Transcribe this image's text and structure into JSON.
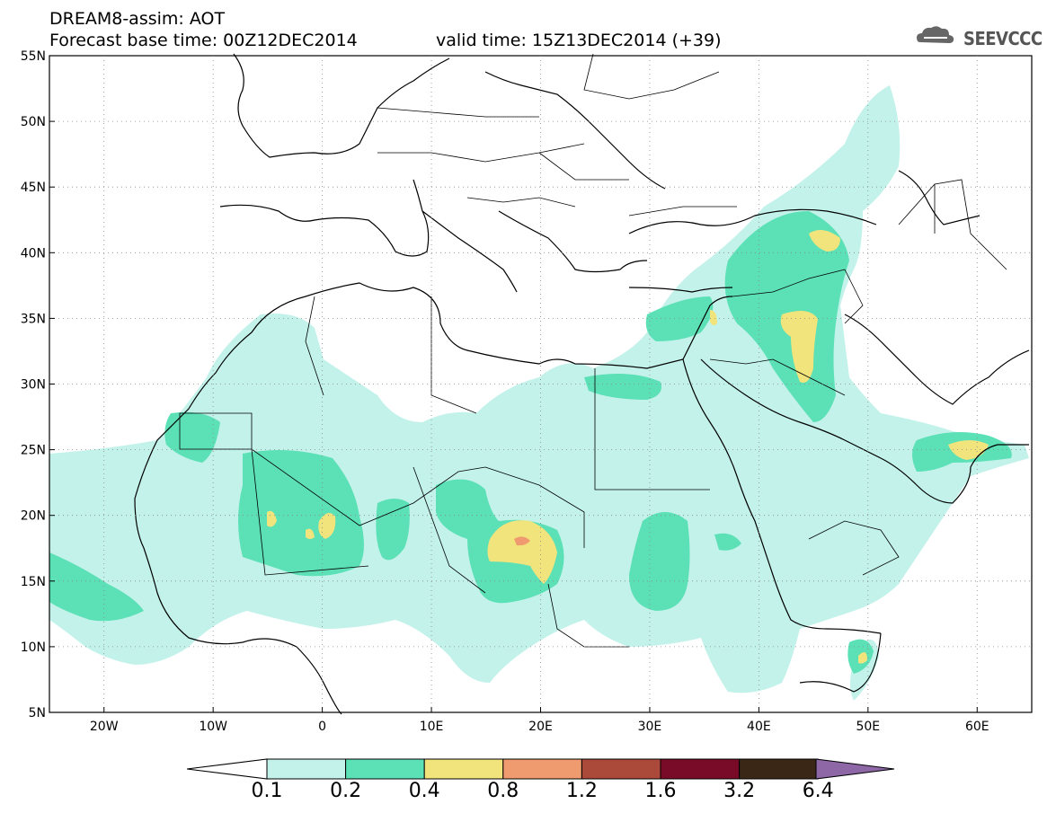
{
  "header": {
    "title": "DREAM8-assim: AOT",
    "base_time": "Forecast base time: 00Z12DEC2014",
    "valid_time": "valid time: 15Z13DEC2014 (+39)"
  },
  "logo": {
    "text": "SEEVCCC",
    "icon": "cloud-icon"
  },
  "map": {
    "lat_labels": [
      "55N",
      "50N",
      "45N",
      "40N",
      "35N",
      "30N",
      "25N",
      "20N",
      "15N",
      "10N",
      "5N"
    ],
    "lon_labels": [
      "20W",
      "10W",
      "0",
      "10E",
      "20E",
      "30E",
      "40E",
      "50E",
      "60E"
    ],
    "extent": {
      "lon": [
        -25,
        65
      ],
      "lat": [
        5,
        55
      ]
    },
    "gridlines": true
  },
  "colorbar": {
    "labels": [
      "0.1",
      "0.2",
      "0.4",
      "0.8",
      "1.2",
      "1.6",
      "3.2",
      "6.4"
    ],
    "colors": [
      "#ffffff",
      "#c2f2ea",
      "#5ce0b6",
      "#f2e47c",
      "#ef9a6f",
      "#ab4a3a",
      "#7a0b28",
      "#3a2716",
      "#8e67a6"
    ]
  }
}
